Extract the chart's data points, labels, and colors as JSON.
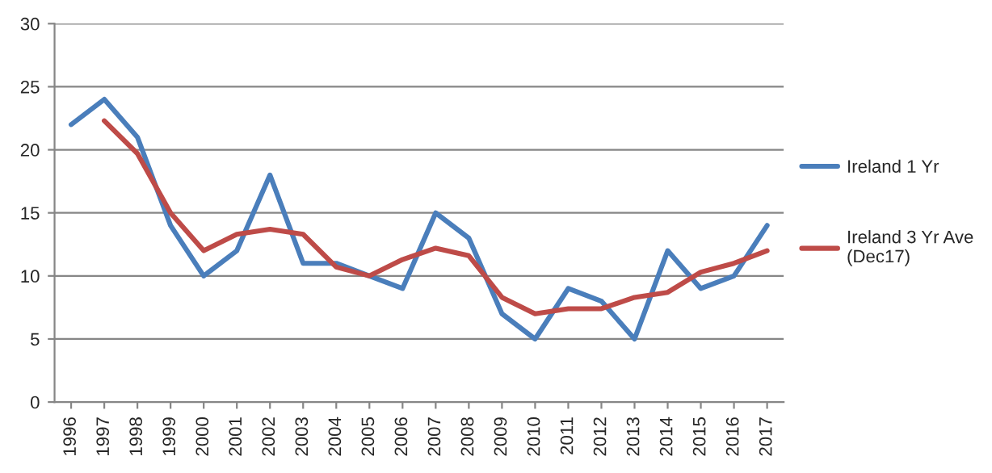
{
  "chart_data": {
    "type": "line",
    "categories": [
      "1996",
      "1997",
      "1998",
      "1999",
      "2000",
      "2001",
      "2002",
      "2003",
      "2004",
      "2005",
      "2006",
      "2007",
      "2008",
      "2009",
      "2010",
      "2011",
      "2012",
      "2013",
      "2014",
      "2015",
      "2016",
      "2017"
    ],
    "series": [
      {
        "name": "Ireland 1 Yr",
        "color": "#4a7ebb",
        "values": [
          22,
          24,
          21,
          14,
          10,
          12,
          18,
          11,
          11,
          10,
          9,
          15,
          13,
          7,
          5,
          9,
          8,
          5,
          12,
          9,
          10,
          14
        ]
      },
      {
        "name": "Ireland 3 Yr Ave\n(Dec17)",
        "color": "#be4b48",
        "values": [
          null,
          22.3,
          19.7,
          15,
          12,
          13.3,
          13.7,
          13.3,
          10.7,
          10,
          11.3,
          12.2,
          11.6,
          8.3,
          7,
          7.4,
          7.4,
          8.3,
          8.7,
          10.3,
          11,
          12
        ]
      }
    ],
    "ylim": [
      0,
      30
    ],
    "yticks": [
      0,
      5,
      10,
      15,
      20,
      25,
      30
    ],
    "grid": "y",
    "legend": "right",
    "marker": "none",
    "line_style": "solid"
  }
}
